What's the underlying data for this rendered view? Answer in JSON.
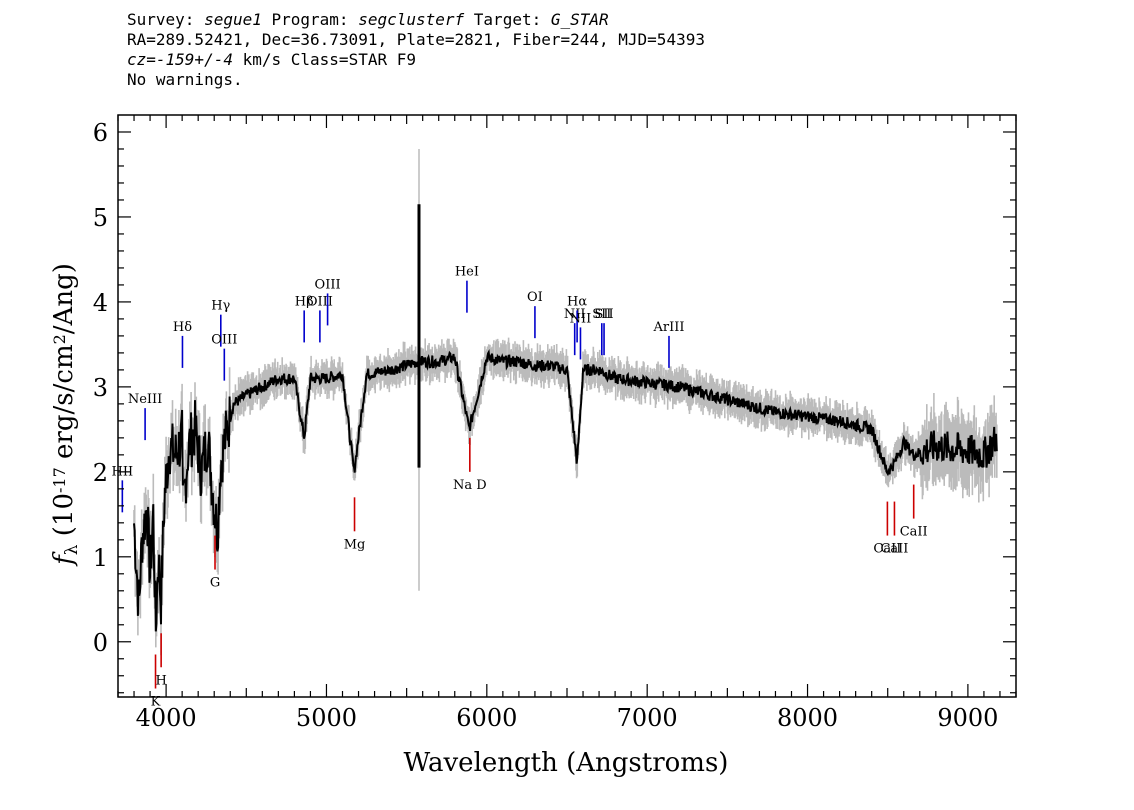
{
  "header": {
    "line1_a": "Survey: ",
    "survey": "segue1",
    "line1_b": " Program: ",
    "program": "segclusterf",
    "line1_c": " Target: ",
    "target": "G_STAR",
    "line2": "RA=289.52421, Dec=36.73091, Plate=2821, Fiber=244, MJD=54393",
    "cz": "cz=-159+/-4",
    "line3_b": " km/s Class=STAR F9",
    "line4": "No warnings."
  },
  "chart_data": {
    "type": "line",
    "xlabel": "Wavelength (Angstroms)",
    "ylabel_main": "f",
    "ylabel_sub": "λ",
    "ylabel_rest": " (10",
    "ylabel_exp": "-17",
    "ylabel_rest2": " erg/s/cm",
    "ylabel_exp2": "2",
    "ylabel_end": "/Ang)",
    "xlim": [
      3700,
      9300
    ],
    "ylim": [
      -0.65,
      6.2
    ],
    "x_ticks": [
      4000,
      5000,
      6000,
      7000,
      8000,
      9000
    ],
    "x_tick_labels": [
      "4000",
      "5000",
      "6000",
      "7000",
      "8000",
      "9000"
    ],
    "y_ticks": [
      0,
      1,
      2,
      3,
      4,
      5,
      6
    ],
    "y_tick_labels": [
      "0",
      "1",
      "2",
      "3",
      "4",
      "5",
      "6"
    ],
    "series": [
      {
        "color": "#000000",
        "x": [
          3800,
          3830,
          3850,
          3880,
          3900,
          3920,
          3935,
          3950,
          3968,
          3990,
          4020,
          4060,
          4100,
          4102,
          4140,
          4180,
          4220,
          4260,
          4300,
          4320,
          4340,
          4380,
          4420,
          4500,
          4600,
          4700,
          4800,
          4861,
          4900,
          5000,
          5100,
          5172,
          5250,
          5400,
          5577,
          5700,
          5800,
          5890,
          6000,
          6100,
          6200,
          6300,
          6400,
          6500,
          6563,
          6600,
          6700,
          6800,
          7000,
          7200,
          7400,
          7600,
          7800,
          8000,
          8200,
          8400,
          8498,
          8542,
          8600,
          8662,
          8800,
          9000,
          9100,
          9180
        ],
        "y": [
          1.4,
          0.4,
          1.2,
          1.6,
          0.8,
          1.5,
          0.1,
          1.0,
          0.5,
          1.7,
          2.3,
          2.2,
          2.4,
          1.5,
          2.3,
          2.5,
          2.0,
          2.4,
          1.6,
          1.3,
          2.1,
          2.5,
          2.8,
          2.9,
          3.0,
          3.1,
          3.1,
          2.4,
          3.1,
          3.1,
          3.15,
          2.0,
          3.15,
          3.2,
          3.3,
          3.3,
          3.35,
          2.5,
          3.35,
          3.3,
          3.3,
          3.25,
          3.25,
          3.2,
          2.1,
          3.2,
          3.2,
          3.1,
          3.05,
          3.0,
          2.9,
          2.8,
          2.7,
          2.65,
          2.6,
          2.5,
          2.0,
          2.1,
          2.35,
          2.2,
          2.3,
          2.25,
          2.2,
          2.4
        ]
      }
    ],
    "spikes": [
      {
        "x": 5577,
        "y_low": 2.05,
        "y_high": 5.15
      }
    ],
    "emission_lines": [
      {
        "label": "HII",
        "x": 3727,
        "y": 1.9,
        "color": "#0000cc"
      },
      {
        "label": "NeIII",
        "x": 3869,
        "y": 2.75,
        "color": "#0000cc"
      },
      {
        "label": "Hδ",
        "x": 4102,
        "y": 3.6,
        "color": "#0000cc"
      },
      {
        "label": "Hγ",
        "x": 4341,
        "y": 3.85,
        "color": "#0000cc"
      },
      {
        "label": "OIII",
        "x": 4363,
        "y": 3.45,
        "color": "#0000cc"
      },
      {
        "label": "Hβ",
        "x": 4861,
        "y": 3.9,
        "color": "#0000cc"
      },
      {
        "label": "OIII",
        "x": 4959,
        "y": 3.9,
        "color": "#0000cc"
      },
      {
        "label": "OIII",
        "x": 5007,
        "y": 4.1,
        "color": "#0000cc"
      },
      {
        "label": "HeI",
        "x": 5876,
        "y": 4.25,
        "color": "#0000cc"
      },
      {
        "label": "OI",
        "x": 6300,
        "y": 3.95,
        "color": "#0000cc"
      },
      {
        "label": "NII",
        "x": 6548,
        "y": 3.75,
        "color": "#0000cc"
      },
      {
        "label": "Hα",
        "x": 6563,
        "y": 3.9,
        "color": "#0000cc"
      },
      {
        "label": "NII",
        "x": 6584,
        "y": 3.7,
        "color": "#0000cc"
      },
      {
        "label": "SII",
        "x": 6717,
        "y": 3.75,
        "color": "#0000cc"
      },
      {
        "label": "SII",
        "x": 6731,
        "y": 3.75,
        "color": "#0000cc"
      },
      {
        "label": "ArIII",
        "x": 7136,
        "y": 3.6,
        "color": "#0000cc"
      }
    ],
    "absorption_lines": [
      {
        "label": "K",
        "x": 3934,
        "y": -0.55,
        "color": "#cc0000"
      },
      {
        "label": "H",
        "x": 3969,
        "y": -0.3,
        "color": "#cc0000"
      },
      {
        "label": "G",
        "x": 4305,
        "y": 0.85,
        "color": "#cc0000"
      },
      {
        "label": "Mg",
        "x": 5175,
        "y": 1.3,
        "color": "#cc0000"
      },
      {
        "label": "Na D",
        "x": 5894,
        "y": 2.0,
        "color": "#cc0000"
      },
      {
        "label": "CaII",
        "x": 8498,
        "y": 1.25,
        "color": "#cc0000"
      },
      {
        "label": "CaII",
        "x": 8542,
        "y": 1.25,
        "color": "#cc0000"
      },
      {
        "label": "CaII",
        "x": 8662,
        "y": 1.45,
        "color": "#cc0000"
      }
    ],
    "visible_line_labels": [
      "HII",
      "NeIII",
      "Hδ",
      "Hγ",
      "OIII",
      "Hβ",
      "OIII",
      "HeI",
      "OI",
      "NII",
      "Hα",
      "NII",
      "SII",
      "ArIII",
      "K",
      "H",
      "G",
      "Mg",
      "Na D",
      "CaII"
    ],
    "grid": false,
    "error_band_color": "#bbbbbb"
  }
}
